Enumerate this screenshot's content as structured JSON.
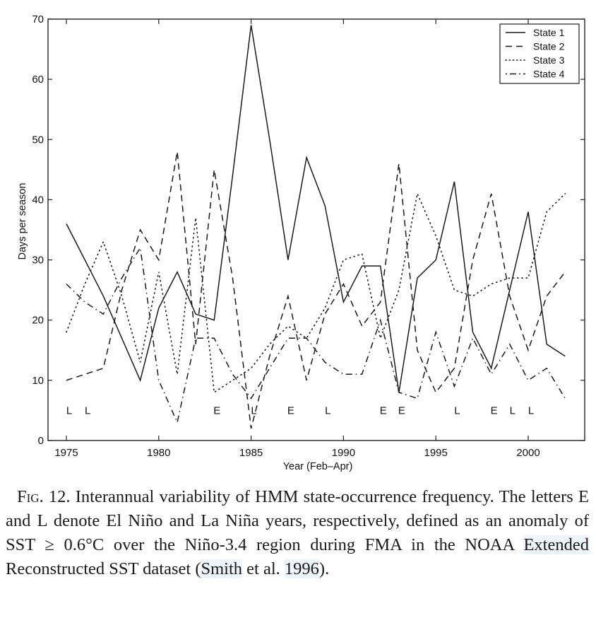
{
  "chart_data": {
    "type": "line",
    "title": "",
    "xlabel": "Year (Feb–Apr)",
    "ylabel": "Days per season",
    "xlim": [
      1974,
      2003
    ],
    "ylim": [
      0,
      70
    ],
    "x_ticks": [
      1975,
      1980,
      1985,
      1990,
      1995,
      2000
    ],
    "y_ticks": [
      0,
      10,
      20,
      30,
      40,
      50,
      60,
      70
    ],
    "grid": false,
    "legend_position": "top-right",
    "x": [
      1975,
      1976,
      1977,
      1978,
      1979,
      1980,
      1981,
      1982,
      1983,
      1984,
      1985,
      1986,
      1987,
      1988,
      1989,
      1990,
      1991,
      1992,
      1993,
      1994,
      1995,
      1996,
      1997,
      1998,
      1999,
      2000,
      2001,
      2002
    ],
    "series": [
      {
        "name": "State 1",
        "style": "solid",
        "values": [
          36,
          30,
          24,
          17,
          10,
          22,
          28,
          21,
          20,
          44,
          69,
          50,
          30,
          47,
          39,
          23,
          29,
          29,
          8,
          27,
          30,
          43,
          18,
          12,
          25,
          38,
          16,
          14
        ]
      },
      {
        "name": "State 2",
        "style": "dashed",
        "values": [
          10,
          11,
          12,
          25,
          35,
          30,
          48,
          16,
          45,
          27,
          2,
          14,
          24,
          10,
          21,
          26,
          19,
          23,
          46,
          15,
          8,
          12,
          30,
          41,
          24,
          15,
          24,
          28
        ]
      },
      {
        "name": "State 3",
        "style": "dotted",
        "values": [
          18,
          26,
          33,
          24,
          13,
          28,
          11,
          37,
          8,
          10,
          12,
          16,
          19,
          17,
          22,
          30,
          31,
          17,
          25,
          41,
          34,
          25,
          24,
          26,
          27,
          27,
          38,
          41
        ]
      },
      {
        "name": "State 4",
        "style": "dashdot",
        "values": [
          26,
          23,
          21,
          27,
          32,
          10,
          3,
          17,
          17,
          11,
          7,
          12,
          17,
          17,
          13,
          11,
          11,
          20,
          8,
          7,
          18,
          9,
          17,
          11,
          16,
          10,
          12,
          7
        ]
      }
    ],
    "annotations": [
      {
        "year": 1975,
        "label": "L",
        "y": 5
      },
      {
        "year": 1976,
        "label": "L",
        "y": 5
      },
      {
        "year": 1983,
        "label": "E",
        "y": 5
      },
      {
        "year": 1985,
        "label": "L",
        "y": 5
      },
      {
        "year": 1987,
        "label": "E",
        "y": 5
      },
      {
        "year": 1989,
        "label": "L",
        "y": 5
      },
      {
        "year": 1992,
        "label": "E",
        "y": 5
      },
      {
        "year": 1993,
        "label": "E",
        "y": 5
      },
      {
        "year": 1996,
        "label": "L",
        "y": 5
      },
      {
        "year": 1998,
        "label": "E",
        "y": 5
      },
      {
        "year": 1999,
        "label": "L",
        "y": 5
      },
      {
        "year": 2000,
        "label": "L",
        "y": 5
      }
    ]
  },
  "caption": {
    "fig_label": "Fig. 12.",
    "text_1": " Interannual variability of HMM state-occurrence frequency. The letters E and L denote El Niño and La Niña years, respectively, defined as an anomaly of SST ≥ 0.6°C over the Niño-3.4 region during FMA in the NOAA ",
    "link_extended": "Extended",
    "text_2": " Reconstructed SST dataset (",
    "link_smith": "Smith",
    "text_3": " et al. ",
    "link_year": "1996",
    "text_4": ")."
  },
  "colors": {
    "line": "#1a1a1a",
    "axis": "#222222",
    "link_highlight": "#eef4fb"
  }
}
